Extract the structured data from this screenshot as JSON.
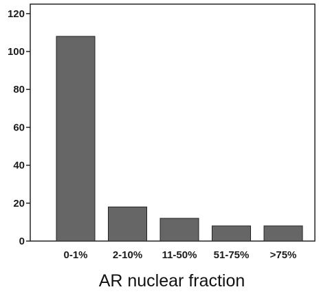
{
  "chart_data": {
    "type": "bar",
    "categories": [
      "0-1%",
      "2-10%",
      "11-50%",
      "51-75%",
      ">75%"
    ],
    "values": [
      108,
      18,
      12,
      8,
      8
    ],
    "title": "",
    "xlabel": "AR nuclear fraction",
    "ylabel": "",
    "ylim": [
      0,
      125
    ],
    "yticks": [
      0,
      20,
      40,
      60,
      80,
      100,
      120
    ],
    "grid": false,
    "legend": "none",
    "bar_color": "#666666",
    "bar_edge_color": "#222222"
  }
}
